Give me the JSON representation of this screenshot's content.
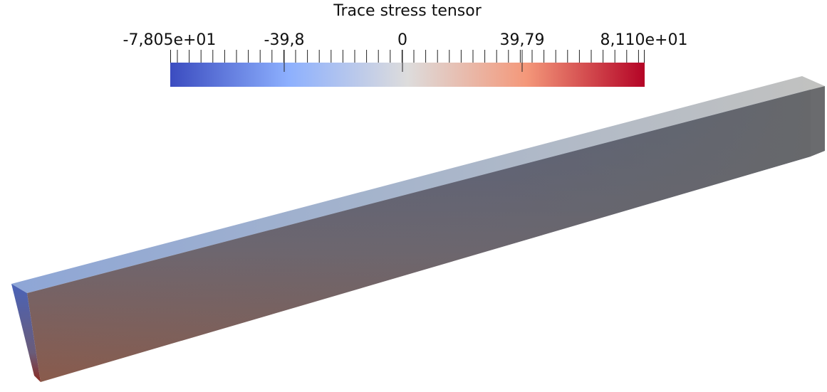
{
  "colorbar": {
    "title": "Trace stress tensor",
    "labels": [
      "-7,805e+01",
      "-39,8",
      "0",
      "39,79",
      "8,110e+01"
    ]
  }
}
